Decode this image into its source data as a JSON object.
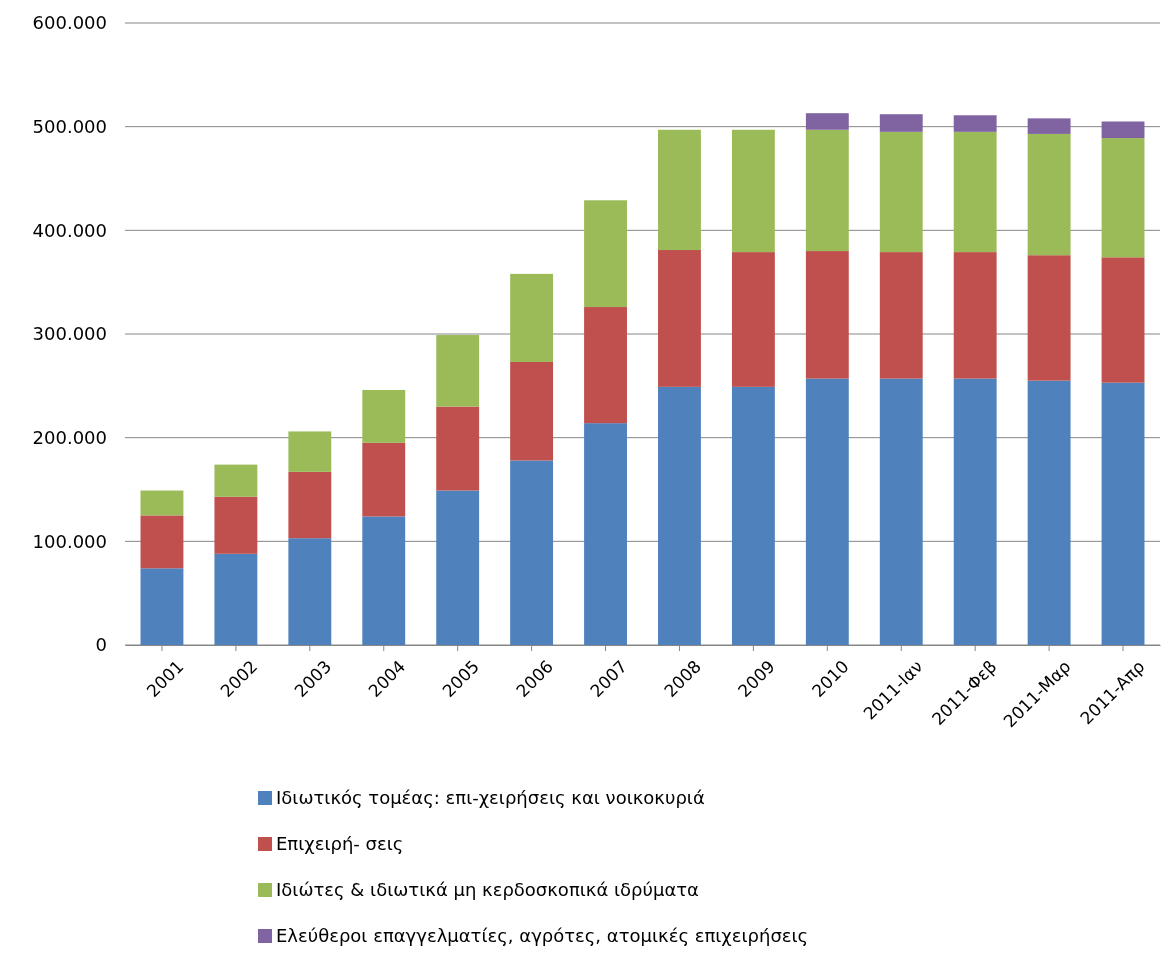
{
  "chart_data": {
    "type": "bar",
    "stacked": true,
    "categories": [
      "2001",
      "2002",
      "2003",
      "2004",
      "2005",
      "2006",
      "2007",
      "2008",
      "2009",
      "2010",
      "2011-Ιαν",
      "2011-Φεβ",
      "2011-Μαρ",
      "2011-Απρ"
    ],
    "series": [
      {
        "name": "Ιδιωτικός τομέας: επι-χειρήσεις και νοικοκυριά",
        "color": "#4f81bd",
        "values": [
          74000,
          88000,
          103000,
          124000,
          149000,
          178000,
          214000,
          249000,
          249000,
          257000,
          257000,
          257000,
          255000,
          253000
        ]
      },
      {
        "name": "Επιχειρή- σεις",
        "color": "#c0504d",
        "values": [
          51000,
          55000,
          64000,
          71000,
          81000,
          95000,
          112000,
          132000,
          130000,
          123000,
          122000,
          122000,
          121000,
          121000
        ]
      },
      {
        "name": "Ιδιώτες & ιδιωτικά μη κερδοσκοπικά ιδρύματα",
        "color": "#9bbb59",
        "values": [
          24000,
          31000,
          39000,
          51000,
          69000,
          85000,
          103000,
          116000,
          118000,
          117000,
          116000,
          116000,
          117000,
          115000
        ]
      },
      {
        "name": "Ελεύθεροι επαγγελματίες, αγρότες, ατομικές επιχειρήσεις",
        "color": "#8064a2",
        "values": [
          null,
          null,
          null,
          null,
          null,
          null,
          null,
          null,
          null,
          16000,
          17000,
          16000,
          15000,
          16000
        ]
      }
    ],
    "ylim": [
      0,
      600000
    ],
    "yticks": [
      {
        "value": 0,
        "label": "0"
      },
      {
        "value": 100000,
        "label": "100.000"
      },
      {
        "value": 200000,
        "label": "200.000"
      },
      {
        "value": 300000,
        "label": "300.000"
      },
      {
        "value": 400000,
        "label": "400.000"
      },
      {
        "value": 500000,
        "label": "500.000"
      },
      {
        "value": 600000,
        "label": "600.000"
      }
    ],
    "grid": "y",
    "legend": "bottom"
  }
}
